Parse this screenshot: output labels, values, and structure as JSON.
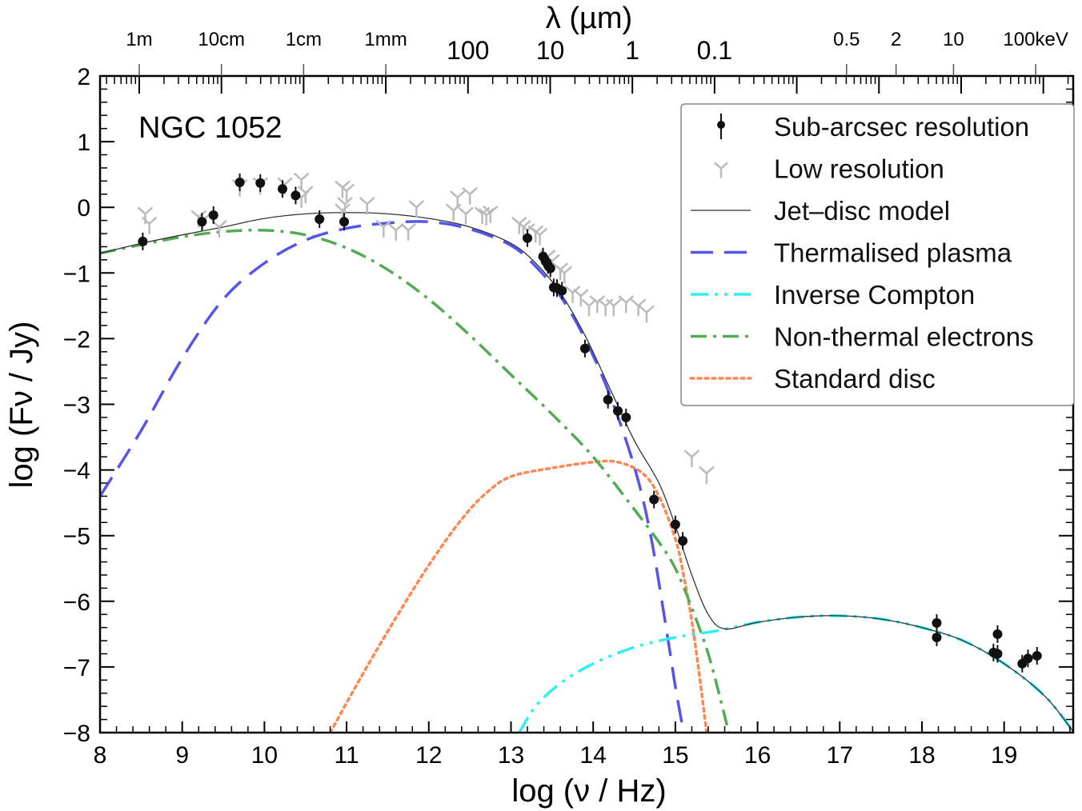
{
  "chart_data": {
    "type": "scatter",
    "title": "",
    "annotation": "NGC 1052",
    "xlabel": "log (ν / Hz)",
    "ylabel": "log (Fν / Jy)",
    "top_xlabel": "λ (µm)",
    "xlim": [
      8,
      19.85
    ],
    "ylim": [
      -8,
      2
    ],
    "grid": false,
    "legend_position": "top-right",
    "x_ticks": [
      8,
      9,
      10,
      11,
      12,
      13,
      14,
      15,
      16,
      17,
      18,
      19
    ],
    "x_tick_labels": [
      "8",
      "9",
      "10",
      "11",
      "12",
      "13",
      "14",
      "15",
      "16",
      "17",
      "18",
      "19"
    ],
    "y_ticks": [
      2,
      1,
      0,
      -1,
      -2,
      -3,
      -4,
      -5,
      -6,
      -7,
      -8
    ],
    "y_tick_labels": [
      "2",
      "1",
      "0",
      "−1",
      "−2",
      "−3",
      "−4",
      "−5",
      "−6",
      "−7",
      "−8"
    ],
    "top_ticks_wavelength": [
      {
        "label": "100",
        "logfreq": 12.477
      },
      {
        "label": "10",
        "logfreq": 13.477
      },
      {
        "label": "1",
        "logfreq": 14.477
      },
      {
        "label": "0.1",
        "logfreq": 15.477
      }
    ],
    "top_ticks_gray": [
      {
        "label": "1m",
        "logfreq": 8.477
      },
      {
        "label": "10cm",
        "logfreq": 9.477
      },
      {
        "label": "1cm",
        "logfreq": 10.477
      },
      {
        "label": "1mm",
        "logfreq": 11.477
      },
      {
        "label": "0.5",
        "logfreq": 17.083
      },
      {
        "label": "2",
        "logfreq": 17.685
      },
      {
        "label": "10",
        "logfreq": 18.384
      },
      {
        "label": "100keV",
        "logfreq": 19.384
      }
    ],
    "legend": [
      {
        "label": "Sub-arcsec resolution",
        "style": "point-errorbar",
        "color": "#000000"
      },
      {
        "label": "Low resolution",
        "style": "tri-marker",
        "color": "#bbbbbb"
      },
      {
        "label": "Jet–disc model",
        "style": "solid",
        "color": "#333333"
      },
      {
        "label": "Thermalised plasma",
        "style": "dashed",
        "color": "#5555ee"
      },
      {
        "label": "Inverse Compton",
        "style": "dash-dot-dot",
        "color": "#33eeee"
      },
      {
        "label": "Non-thermal electrons",
        "style": "dash-dot",
        "color": "#55aa55"
      },
      {
        "label": "Standard disc",
        "style": "dotted",
        "color": "#ff8855"
      }
    ],
    "series": [
      {
        "name": "Sub-arcsec resolution",
        "kind": "points",
        "x": [
          8.52,
          9.24,
          9.38,
          9.7,
          9.95,
          10.22,
          10.38,
          10.67,
          10.97,
          13.2,
          13.39,
          13.42,
          13.45,
          13.48,
          13.52,
          13.56,
          13.62,
          13.9,
          14.18,
          14.3,
          14.4,
          14.74,
          15.0,
          15.09,
          18.18,
          18.18,
          18.87,
          18.92,
          18.92,
          19.22,
          19.29,
          19.4
        ],
        "y": [
          -0.52,
          -0.22,
          -0.12,
          0.38,
          0.37,
          0.28,
          0.18,
          -0.18,
          -0.22,
          -0.47,
          -0.75,
          -0.82,
          -0.88,
          -0.93,
          -1.22,
          -1.23,
          -1.27,
          -2.15,
          -2.93,
          -3.1,
          -3.2,
          -4.45,
          -4.83,
          -5.08,
          -6.33,
          -6.55,
          -6.78,
          -6.5,
          -6.8,
          -6.95,
          -6.87,
          -6.83
        ]
      },
      {
        "name": "Low resolution",
        "kind": "points",
        "x": [
          8.55,
          8.6,
          9.2,
          9.25,
          9.45,
          9.7,
          9.95,
          10.25,
          10.45,
          10.5,
          10.45,
          10.95,
          11.0,
          10.98,
          10.95,
          11.25,
          11.45,
          11.6,
          11.75,
          11.85,
          12.3,
          12.35,
          12.5,
          12.45,
          12.65,
          12.7,
          12.75,
          13.1,
          13.15,
          13.2,
          13.3,
          13.35,
          13.45,
          13.5,
          13.6,
          13.65,
          13.75,
          13.85,
          13.95,
          14.05,
          14.15,
          14.25,
          14.4,
          14.55,
          14.65,
          15.2,
          15.38
        ],
        "y": [
          -0.1,
          -0.25,
          -0.15,
          -0.2,
          -0.3,
          0.32,
          0.35,
          0.35,
          0.42,
          0.22,
          0.15,
          0.3,
          0.25,
          0.05,
          -0.05,
          0.05,
          -0.3,
          -0.35,
          -0.35,
          0.0,
          -0.05,
          0.15,
          0.2,
          -0.1,
          -0.1,
          -0.12,
          -0.08,
          -0.25,
          -0.3,
          -0.35,
          -0.38,
          -0.42,
          -0.75,
          -0.82,
          -0.95,
          -1.0,
          -1.3,
          -1.35,
          -1.5,
          -1.45,
          -1.5,
          -1.5,
          -1.45,
          -1.5,
          -1.6,
          -3.8,
          -4.05
        ]
      },
      {
        "name": "Jet–disc model",
        "kind": "curve",
        "x": [
          8.0,
          8.5,
          9.0,
          9.5,
          10.0,
          10.5,
          11.0,
          11.5,
          12.0,
          12.5,
          13.0,
          13.3,
          13.6,
          13.9,
          14.2,
          14.5,
          14.8,
          15.0,
          15.2,
          15.4,
          15.6,
          16.0,
          16.5,
          17.0,
          17.5,
          18.0,
          18.5,
          19.0,
          19.5,
          19.85
        ],
        "y": [
          -0.7,
          -0.55,
          -0.42,
          -0.3,
          -0.17,
          -0.1,
          -0.08,
          -0.1,
          -0.17,
          -0.3,
          -0.55,
          -0.85,
          -1.3,
          -1.95,
          -2.75,
          -3.55,
          -4.2,
          -4.85,
          -5.6,
          -6.2,
          -6.42,
          -6.32,
          -6.24,
          -6.22,
          -6.27,
          -6.4,
          -6.6,
          -6.95,
          -7.45,
          -8.0
        ]
      },
      {
        "name": "Thermalised plasma",
        "kind": "curve",
        "x": [
          8.0,
          8.5,
          9.0,
          9.5,
          10.0,
          10.5,
          11.0,
          11.5,
          12.0,
          12.5,
          13.0,
          13.3,
          13.6,
          13.9,
          14.2,
          14.5,
          14.7,
          14.9,
          15.0,
          15.1
        ],
        "y": [
          -4.4,
          -3.4,
          -2.3,
          -1.4,
          -0.85,
          -0.5,
          -0.32,
          -0.24,
          -0.22,
          -0.33,
          -0.58,
          -0.9,
          -1.35,
          -2.0,
          -2.85,
          -3.95,
          -5.0,
          -6.5,
          -7.3,
          -8.0
        ]
      },
      {
        "name": "Inverse Compton",
        "kind": "curve",
        "x": [
          13.1,
          13.3,
          13.6,
          14.0,
          14.5,
          15.0,
          15.5,
          16.0,
          16.5,
          17.0,
          17.5,
          18.0,
          18.5,
          19.0,
          19.5,
          19.85
        ],
        "y": [
          -8.0,
          -7.6,
          -7.25,
          -6.95,
          -6.7,
          -6.55,
          -6.45,
          -6.32,
          -6.24,
          -6.22,
          -6.27,
          -6.4,
          -6.6,
          -6.95,
          -7.45,
          -8.0
        ]
      },
      {
        "name": "Non-thermal electrons",
        "kind": "curve",
        "x": [
          8.0,
          8.5,
          9.0,
          9.5,
          10.0,
          10.5,
          11.0,
          11.5,
          12.0,
          12.5,
          13.0,
          13.5,
          14.0,
          14.5,
          14.8,
          15.0,
          15.2,
          15.4,
          15.55,
          15.65
        ],
        "y": [
          -0.7,
          -0.57,
          -0.45,
          -0.37,
          -0.35,
          -0.42,
          -0.62,
          -0.95,
          -1.4,
          -1.95,
          -2.55,
          -3.15,
          -3.8,
          -4.6,
          -5.1,
          -5.5,
          -6.1,
          -6.8,
          -7.5,
          -8.0
        ]
      },
      {
        "name": "Standard disc",
        "kind": "curve",
        "x": [
          10.8,
          11.2,
          11.6,
          12.0,
          12.4,
          12.7,
          13.0,
          13.5,
          14.0,
          14.3,
          14.6,
          14.8,
          15.0,
          15.1,
          15.2,
          15.3,
          15.38
        ],
        "y": [
          -8.0,
          -7.1,
          -6.25,
          -5.45,
          -4.75,
          -4.35,
          -4.1,
          -3.97,
          -3.88,
          -3.88,
          -4.05,
          -4.4,
          -5.05,
          -5.6,
          -6.3,
          -7.2,
          -8.0
        ]
      }
    ]
  }
}
